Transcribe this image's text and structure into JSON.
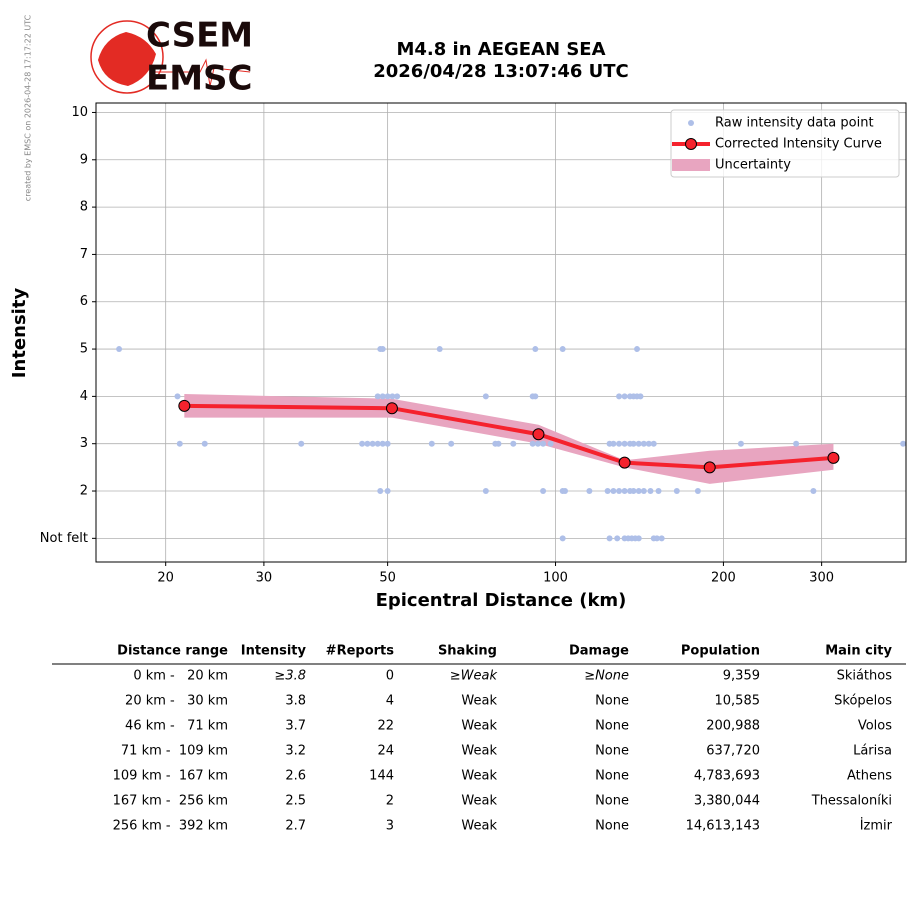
{
  "watermark": "created by EMSC on 2026-04-28 17:17:22 UTC",
  "logo": {
    "top": "CSEM",
    "bottom": "EMSC"
  },
  "chart_data": {
    "type": "intensity",
    "title": "M4.8 in AEGEAN SEA",
    "subtitle": "2026/04/28 13:07:46 UTC",
    "x_label": "Epicentral Distance (km)",
    "y_label": "Intensity",
    "x_scale": "log",
    "xlim": [
      15,
      425
    ],
    "ylim": [
      0.5,
      10.2
    ],
    "xticks": [
      20,
      30,
      50,
      100,
      200,
      300
    ],
    "yticks": [
      {
        "value": 1,
        "label": "Not felt"
      },
      2,
      3,
      4,
      5,
      6,
      7,
      8,
      9,
      10
    ],
    "grid": true,
    "legend": "upper right",
    "series": [
      {
        "name": "Raw intensity data point",
        "kind": "scatter",
        "color": "#aebfe8",
        "x": [
          16.5,
          48.5,
          49,
          62,
          92,
          103,
          140,
          21,
          48,
          49,
          50,
          51,
          52,
          75,
          91,
          92,
          130,
          133,
          136,
          138,
          140,
          142,
          21.2,
          23.5,
          35,
          45,
          46,
          47,
          48,
          49,
          50,
          60,
          65,
          78,
          79,
          84,
          91,
          93,
          95,
          98,
          125,
          127,
          130,
          133,
          136,
          138,
          141,
          144,
          147,
          150,
          215,
          270,
          420,
          48.5,
          50,
          75,
          95,
          103,
          104,
          115,
          124,
          127,
          130,
          133,
          136,
          138,
          141,
          144,
          148,
          153,
          165,
          180,
          290,
          103,
          125,
          129,
          133,
          135,
          137,
          139,
          141,
          150,
          152,
          155
        ],
        "values": [
          5,
          5,
          5,
          5,
          5,
          5,
          5,
          4,
          4,
          4,
          4,
          4,
          4,
          4,
          4,
          4,
          4,
          4,
          4,
          4,
          4,
          4,
          3,
          3,
          3,
          3,
          3,
          3,
          3,
          3,
          3,
          3,
          3,
          3,
          3,
          3,
          3,
          3,
          3,
          3,
          3,
          3,
          3,
          3,
          3,
          3,
          3,
          3,
          3,
          3,
          3,
          3,
          3,
          2,
          2,
          2,
          2,
          2,
          2,
          2,
          2,
          2,
          2,
          2,
          2,
          2,
          2,
          2,
          2,
          2,
          2,
          2,
          2,
          1,
          1,
          1,
          1,
          1,
          1,
          1,
          1,
          1,
          1,
          1
        ]
      },
      {
        "name": "Corrected Intensity Curve",
        "kind": "line",
        "color": "#f5222d",
        "x": [
          21.6,
          50.9,
          93.2,
          133,
          189,
          315
        ],
        "values": [
          3.8,
          3.75,
          3.2,
          2.6,
          2.5,
          2.7
        ]
      },
      {
        "name": "Uncertainty",
        "kind": "band",
        "color": "#e8a5c0",
        "x": [
          21.6,
          50.9,
          93.2,
          133,
          189,
          315
        ],
        "upper": [
          4.05,
          3.95,
          3.4,
          2.65,
          2.85,
          3.0
        ],
        "lower": [
          3.55,
          3.55,
          3.0,
          2.5,
          2.15,
          2.45
        ]
      }
    ]
  },
  "table": {
    "columns": [
      "Distance range",
      "Intensity",
      "#Reports",
      "Shaking",
      "Damage",
      "Population",
      "Main city"
    ],
    "rows": [
      [
        "0 km -   20 km",
        "≥3.8",
        "0",
        "≥Weak",
        "≥None",
        "9,359",
        "Skiáthos"
      ],
      [
        "20 km -   30 km",
        "3.8",
        "4",
        "Weak",
        "None",
        "10,585",
        "Skópelos"
      ],
      [
        "46 km -   71 km",
        "3.7",
        "22",
        "Weak",
        "None",
        "200,988",
        "Volos"
      ],
      [
        "71 km -  109 km",
        "3.2",
        "24",
        "Weak",
        "None",
        "637,720",
        "Lárisa"
      ],
      [
        "109 km -  167 km",
        "2.6",
        "144",
        "Weak",
        "None",
        "4,783,693",
        "Athens"
      ],
      [
        "167 km -  256 km",
        "2.5",
        "2",
        "Weak",
        "None",
        "3,380,044",
        "Thessaloníki"
      ],
      [
        "256 km -  392 km",
        "2.7",
        "3",
        "Weak",
        "None",
        "14,613,143",
        "İzmir"
      ]
    ]
  }
}
